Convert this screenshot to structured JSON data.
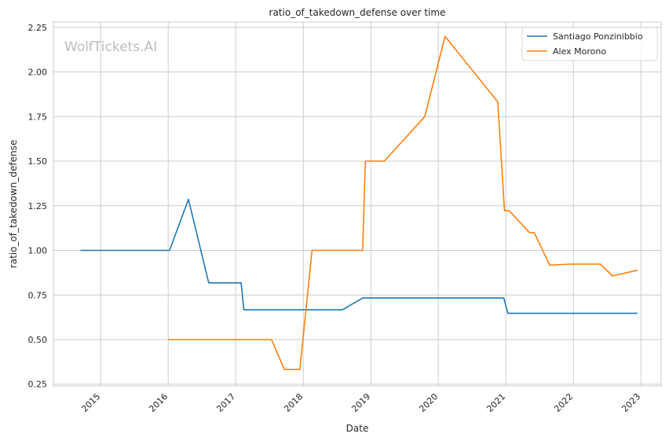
{
  "chart_data": {
    "type": "line",
    "title": "ratio_of_takedown_defense over time",
    "xlabel": "Date",
    "ylabel": "ratio_of_takedown_defense",
    "watermark": "WolfTickets.AI",
    "xlim": [
      2014.3,
      2023.3
    ],
    "ylim": [
      0.24,
      2.28
    ],
    "x_ticks": [
      2015,
      2016,
      2017,
      2018,
      2019,
      2020,
      2021,
      2022,
      2023
    ],
    "y_ticks": [
      "0.25",
      "0.50",
      "0.75",
      "1.00",
      "1.25",
      "1.50",
      "1.75",
      "2.00",
      "2.25"
    ],
    "grid": true,
    "legend_position": "top-right",
    "series": [
      {
        "name": "Santiago Ponzinibbio",
        "color": "#1f77b4",
        "points": [
          [
            2014.7,
            1.0
          ],
          [
            2016.02,
            1.0
          ],
          [
            2016.3,
            1.286
          ],
          [
            2016.6,
            0.818
          ],
          [
            2017.08,
            0.818
          ],
          [
            2017.12,
            0.667
          ],
          [
            2018.58,
            0.667
          ],
          [
            2018.88,
            0.733
          ],
          [
            2020.97,
            0.733
          ],
          [
            2021.03,
            0.647
          ],
          [
            2022.95,
            0.647
          ]
        ]
      },
      {
        "name": "Alex Morono",
        "color": "#ff7f0e",
        "points": [
          [
            2016.0,
            0.5
          ],
          [
            2017.53,
            0.5
          ],
          [
            2017.72,
            0.333
          ],
          [
            2017.95,
            0.333
          ],
          [
            2018.13,
            1.0
          ],
          [
            2018.88,
            1.0
          ],
          [
            2018.92,
            1.5
          ],
          [
            2019.2,
            1.5
          ],
          [
            2019.8,
            1.75
          ],
          [
            2020.1,
            2.2
          ],
          [
            2020.88,
            1.833
          ],
          [
            2020.98,
            1.222
          ],
          [
            2021.05,
            1.222
          ],
          [
            2021.35,
            1.1
          ],
          [
            2021.42,
            1.1
          ],
          [
            2021.65,
            0.917
          ],
          [
            2021.95,
            0.923
          ],
          [
            2022.4,
            0.923
          ],
          [
            2022.58,
            0.857
          ],
          [
            2022.95,
            0.889
          ]
        ]
      }
    ]
  }
}
